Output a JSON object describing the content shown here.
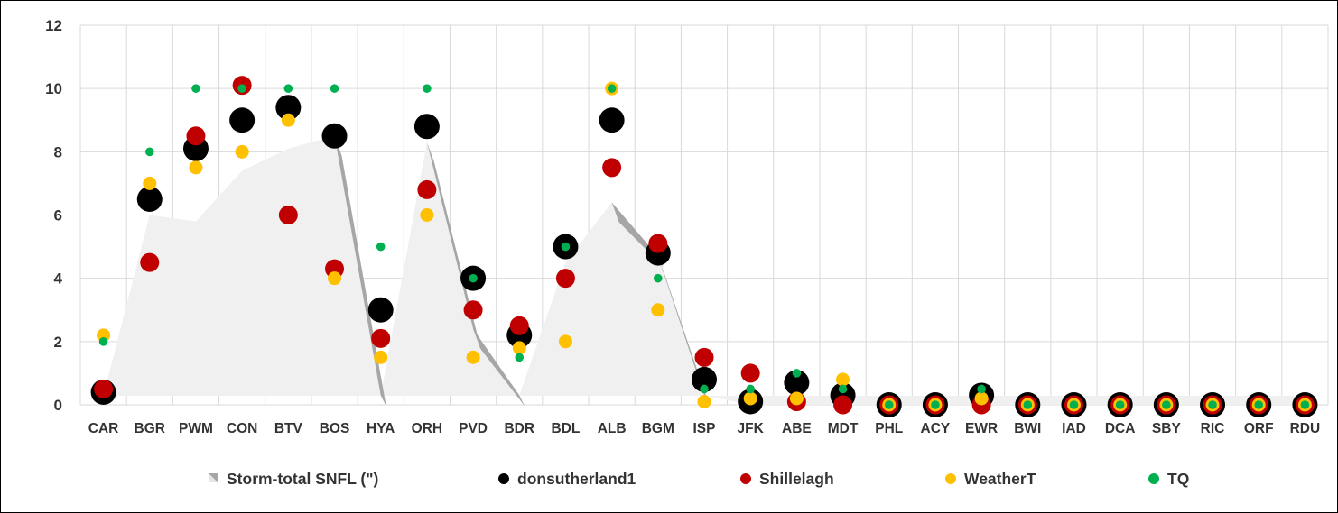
{
  "chart_data": {
    "type": "scatter",
    "title": "",
    "xlabel": "",
    "ylabel": "",
    "ylim": [
      0,
      12
    ],
    "yticks": [
      "0",
      "2",
      "4",
      "6",
      "8",
      "10",
      "12"
    ],
    "grid": true,
    "legend_position": "bottom",
    "categories": [
      "CAR",
      "BGR",
      "PWM",
      "CON",
      "BTV",
      "BOS",
      "HYA",
      "ORH",
      "PVD",
      "BDR",
      "BDL",
      "ALB",
      "BGM",
      "ISP",
      "JFK",
      "ABE",
      "MDT",
      "PHL",
      "ACY",
      "EWR",
      "BWI",
      "IAD",
      "DCA",
      "SBY",
      "RIC",
      "ORF",
      "RDU"
    ],
    "series": [
      {
        "name": "Storm-total SNFL (\")",
        "kind": "area",
        "color": "#f0f0f0",
        "values": [
          0.3,
          6.0,
          5.8,
          7.4,
          8.1,
          8.5,
          0.3,
          8.3,
          2.4,
          0.3,
          4.5,
          6.4,
          4.7,
          0.3,
          0.0,
          0.0,
          0.0,
          0.0,
          0.0,
          0.0,
          0.0,
          0.0,
          0.0,
          0.0,
          0.0,
          0.0,
          0.0
        ]
      },
      {
        "name": "donsutherland1",
        "kind": "marker",
        "color": "#000000",
        "values": [
          0.4,
          6.5,
          8.1,
          9.0,
          9.4,
          8.5,
          3.0,
          8.8,
          4.0,
          2.2,
          5.0,
          9.0,
          4.8,
          0.8,
          0.1,
          0.7,
          0.3,
          0.0,
          0.0,
          0.3,
          0.0,
          0.0,
          0.0,
          0.0,
          0.0,
          0.0,
          0.0
        ]
      },
      {
        "name": "Shillelagh",
        "kind": "marker",
        "color": "#c00000",
        "values": [
          0.5,
          4.5,
          8.5,
          10.1,
          6.0,
          4.3,
          2.1,
          6.8,
          3.0,
          2.5,
          4.0,
          7.5,
          5.1,
          1.5,
          1.0,
          0.1,
          0.0,
          0.0,
          0.0,
          0.0,
          0.0,
          0.0,
          0.0,
          0.0,
          0.0,
          0.0,
          0.0
        ]
      },
      {
        "name": "WeatherT",
        "kind": "marker",
        "color": "#ffc000",
        "values": [
          2.2,
          7.0,
          7.5,
          8.0,
          9.0,
          4.0,
          1.5,
          6.0,
          1.5,
          1.8,
          2.0,
          10.0,
          3.0,
          0.1,
          0.2,
          0.2,
          0.8,
          0.0,
          0.0,
          0.2,
          0.0,
          0.0,
          0.0,
          0.0,
          0.0,
          0.0,
          0.0
        ]
      },
      {
        "name": "TQ",
        "kind": "marker",
        "color": "#00b050",
        "values": [
          2.0,
          8.0,
          10.0,
          10.0,
          10.0,
          10.0,
          5.0,
          10.0,
          4.0,
          1.5,
          5.0,
          10.0,
          4.0,
          0.5,
          0.5,
          1.0,
          0.5,
          0.0,
          0.0,
          0.5,
          0.0,
          0.0,
          0.0,
          0.0,
          0.0,
          0.0,
          0.0
        ]
      }
    ]
  }
}
